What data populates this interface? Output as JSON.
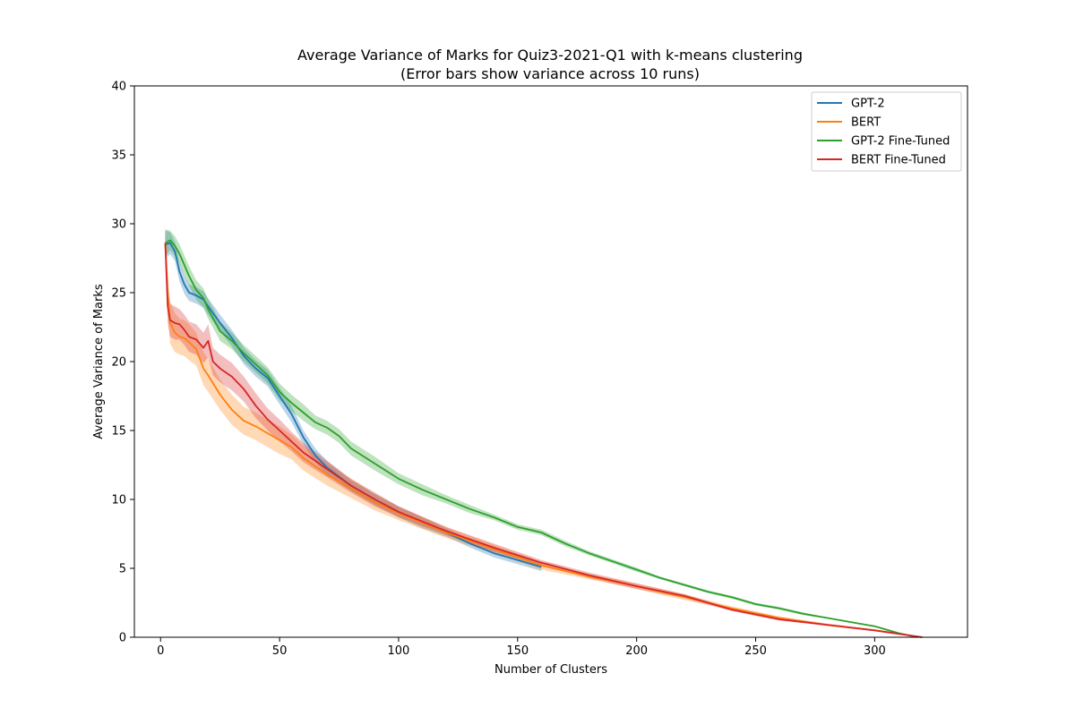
{
  "chart_data": {
    "type": "line",
    "title": "Average Variance of Marks for Quiz3-2021-Q1 with k-means clustering",
    "subtitle": "(Error bars show variance across 10 runs)",
    "xlabel": "Number of Clusters",
    "ylabel": "Average Variance of Marks",
    "xlim": [
      -11,
      339
    ],
    "ylim": [
      0,
      40
    ],
    "xticks": [
      0,
      50,
      100,
      150,
      200,
      250,
      300
    ],
    "yticks": [
      0,
      5,
      10,
      15,
      20,
      25,
      30,
      35,
      40
    ],
    "legend_position": "top-right",
    "grid": false,
    "series": [
      {
        "name": "GPT-2",
        "color": "#1f77b4",
        "x": [
          2,
          4,
          6,
          8,
          10,
          12,
          15,
          18,
          20,
          25,
          30,
          35,
          40,
          45,
          50,
          55,
          60,
          65,
          70,
          80,
          90,
          100,
          110,
          120,
          130,
          140,
          150,
          160
        ],
        "y": [
          28.5,
          28.6,
          28.0,
          26.5,
          25.6,
          25.0,
          24.8,
          24.5,
          24.0,
          22.8,
          21.7,
          20.4,
          19.5,
          18.8,
          17.5,
          16.2,
          14.5,
          13.2,
          12.3,
          11.0,
          10.0,
          9.1,
          8.3,
          7.6,
          6.8,
          6.1,
          5.6,
          5.1
        ],
        "err": [
          1.0,
          0.8,
          0.7,
          0.7,
          0.7,
          0.6,
          0.6,
          0.6,
          0.6,
          0.6,
          0.6,
          0.6,
          0.6,
          0.6,
          0.6,
          0.6,
          0.5,
          0.5,
          0.5,
          0.4,
          0.4,
          0.4,
          0.4,
          0.3,
          0.3,
          0.3,
          0.3,
          0.3
        ]
      },
      {
        "name": "BERT",
        "color": "#ff7f0e",
        "x": [
          2,
          3,
          4,
          6,
          8,
          10,
          12,
          15,
          18,
          20,
          25,
          30,
          35,
          40,
          45,
          50,
          55,
          60,
          70,
          80,
          90,
          100,
          120,
          140,
          160,
          180,
          200,
          220,
          240,
          260,
          280,
          300,
          320
        ],
        "y": [
          28.6,
          25.0,
          22.8,
          22.1,
          21.8,
          21.7,
          21.4,
          20.9,
          19.5,
          19.0,
          17.6,
          16.5,
          15.7,
          15.3,
          14.8,
          14.3,
          13.8,
          13.0,
          11.8,
          10.8,
          9.8,
          9.0,
          7.6,
          6.4,
          5.2,
          4.4,
          3.7,
          2.9,
          2.1,
          1.4,
          0.9,
          0.5,
          0.0
        ],
        "err": [
          1.2,
          1.5,
          1.5,
          1.4,
          1.3,
          1.3,
          1.3,
          1.2,
          1.2,
          1.2,
          1.1,
          1.1,
          1.0,
          1.0,
          1.0,
          1.0,
          0.9,
          0.9,
          0.8,
          0.7,
          0.6,
          0.5,
          0.4,
          0.3,
          0.3,
          0.2,
          0.2,
          0.2,
          0.15,
          0.1,
          0.1,
          0.05,
          0.0
        ]
      },
      {
        "name": "GPT-2 Fine-Tuned",
        "color": "#2ca02c",
        "x": [
          2,
          4,
          6,
          8,
          10,
          12,
          15,
          18,
          20,
          25,
          30,
          35,
          40,
          45,
          50,
          55,
          60,
          65,
          70,
          75,
          80,
          90,
          100,
          110,
          120,
          130,
          140,
          150,
          160,
          170,
          180,
          190,
          200,
          210,
          220,
          230,
          240,
          250,
          260,
          270,
          280,
          290,
          300,
          310,
          318
        ],
        "y": [
          28.6,
          28.8,
          28.4,
          27.8,
          27.0,
          26.2,
          25.2,
          24.6,
          23.8,
          22.2,
          21.5,
          20.6,
          19.8,
          19.0,
          17.8,
          17.0,
          16.3,
          15.6,
          15.2,
          14.6,
          13.7,
          12.6,
          11.5,
          10.7,
          10.0,
          9.3,
          8.7,
          8.0,
          7.6,
          6.8,
          6.1,
          5.5,
          4.9,
          4.3,
          3.8,
          3.3,
          2.9,
          2.4,
          2.1,
          1.7,
          1.4,
          1.1,
          0.8,
          0.3,
          0.0
        ],
        "err": [
          1.0,
          0.7,
          0.7,
          0.7,
          0.7,
          0.7,
          0.7,
          0.7,
          0.7,
          0.7,
          0.6,
          0.6,
          0.6,
          0.6,
          0.6,
          0.6,
          0.6,
          0.5,
          0.5,
          0.5,
          0.5,
          0.5,
          0.4,
          0.4,
          0.3,
          0.3,
          0.2,
          0.2,
          0.2,
          0.2,
          0.15,
          0.15,
          0.15,
          0.1,
          0.1,
          0.1,
          0.1,
          0.1,
          0.1,
          0.1,
          0.05,
          0.05,
          0.05,
          0.05,
          0.0
        ]
      },
      {
        "name": "BERT Fine-Tuned",
        "color": "#d62728",
        "x": [
          2,
          3,
          4,
          6,
          8,
          10,
          12,
          15,
          18,
          20,
          22,
          25,
          30,
          35,
          40,
          45,
          50,
          55,
          60,
          70,
          80,
          90,
          100,
          120,
          140,
          160,
          180,
          200,
          220,
          240,
          260,
          280,
          300,
          320
        ],
        "y": [
          28.6,
          24.0,
          23.0,
          22.8,
          22.7,
          22.3,
          21.8,
          21.6,
          21.0,
          21.5,
          20.0,
          19.5,
          18.9,
          18.0,
          16.8,
          15.8,
          15.0,
          14.2,
          13.4,
          12.2,
          11.0,
          10.0,
          9.1,
          7.7,
          6.5,
          5.4,
          4.5,
          3.7,
          3.0,
          2.0,
          1.3,
          0.9,
          0.5,
          0.0
        ],
        "err": [
          1.0,
          1.2,
          1.2,
          1.2,
          1.1,
          1.1,
          1.1,
          1.1,
          1.1,
          1.2,
          1.0,
          1.0,
          1.0,
          0.9,
          0.9,
          0.8,
          0.8,
          0.7,
          0.7,
          0.6,
          0.5,
          0.5,
          0.4,
          0.3,
          0.3,
          0.2,
          0.2,
          0.2,
          0.15,
          0.1,
          0.1,
          0.05,
          0.05,
          0.0
        ]
      }
    ]
  }
}
